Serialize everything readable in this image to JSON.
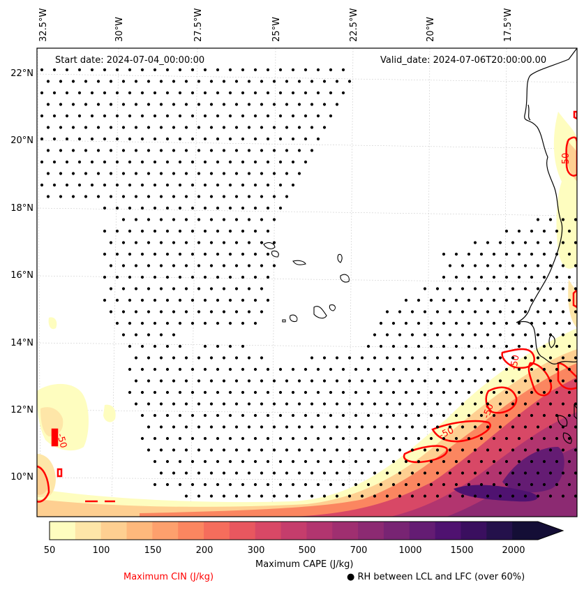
{
  "header": {
    "start_date": "Start date: 2024-07-04_00:00:00",
    "valid_date": "Valid_date: 2024-07-06T20:00:00.00"
  },
  "axes": {
    "lon_labels": [
      "32.5°W",
      "30°W",
      "27.5°W",
      "25°W",
      "22.5°W",
      "20°W",
      "17.5°W"
    ],
    "lat_labels": [
      "22°N",
      "20°N",
      "18°N",
      "16°N",
      "14°N",
      "12°N",
      "10°N"
    ]
  },
  "colorbar": {
    "title": "Maximum CAPE (J/kg)",
    "ticks": [
      "50",
      "100",
      "150",
      "200",
      "300",
      "500",
      "700",
      "1000",
      "1500",
      "2000"
    ],
    "colors": [
      "#fefdbf",
      "#fee6a8",
      "#fecf91",
      "#feb87c",
      "#fda06d",
      "#fb8660",
      "#f56d5c",
      "#e8575f",
      "#d84866",
      "#c53d6c",
      "#b2356f",
      "#9f2f70",
      "#8c2a72",
      "#782473",
      "#641c73",
      "#4f1270",
      "#3a0f5f",
      "#24114b",
      "#140e36"
    ]
  },
  "contour": {
    "label_value": "-50",
    "color": "#ff0000"
  },
  "legend": {
    "cin_label": "Maximum CIN (J/kg)",
    "cin_color": "#ff0000",
    "rh_symbol": "●",
    "rh_label": "RH between LCL and LFC (over 60%)"
  }
}
